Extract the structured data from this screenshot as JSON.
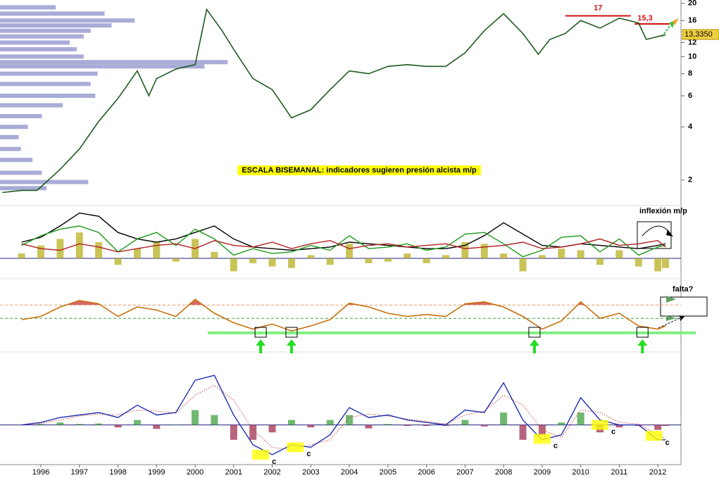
{
  "chart_data": [
    {
      "type": "line",
      "log_scale": true,
      "annotation": "ESCALA BISEMANAL: indicadores sugieren presión alcista m/p",
      "xlim": [
        1994.94,
        2012.6
      ],
      "ylim": [
        1.53,
        20.9
      ],
      "yticks": [
        2,
        4,
        6,
        8,
        10,
        12,
        16,
        20
      ],
      "x": [
        1995.0,
        1995.5,
        1995.9,
        1996.5,
        1997.0,
        1997.5,
        1998.0,
        1998.5,
        1998.8,
        1999.0,
        1999.5,
        2000.0,
        2000.3,
        2000.7,
        2001.0,
        2001.5,
        2002.0,
        2002.5,
        2003.0,
        2003.5,
        2004.0,
        2004.5,
        2005.0,
        2005.5,
        2006.0,
        2006.5,
        2007.0,
        2007.5,
        2008.0,
        2008.5,
        2008.9,
        2009.2,
        2009.6,
        2010.0,
        2010.5,
        2011.0,
        2011.5,
        2011.7,
        2012.2
      ],
      "series": [
        {
          "style": "line",
          "color": "#1f5a1f",
          "values": [
            1.7,
            1.75,
            1.75,
            2.3,
            3.0,
            4.3,
            5.8,
            8.3,
            6.0,
            7.5,
            8.5,
            9.0,
            18.5,
            14,
            11,
            7.5,
            6.5,
            4.5,
            5.0,
            6.5,
            8.3,
            8.0,
            8.8,
            9.0,
            8.8,
            8.8,
            10.5,
            14,
            17.5,
            13.5,
            10.3,
            12.5,
            13.5,
            16,
            14.5,
            16.5,
            15.5,
            12.5,
            13.3
          ]
        }
      ],
      "volume_profile": {
        "color": "#9a9ed0",
        "prices": [
          19,
          17.5,
          16,
          15,
          14,
          13,
          12,
          11,
          10,
          9.3,
          8.8,
          8,
          7,
          6,
          5.3,
          4.6,
          4,
          3.5,
          3,
          2.6,
          2.2,
          1.95,
          1.8
        ],
        "values": [
          24,
          45,
          58,
          48,
          39,
          36,
          30,
          33,
          36,
          98,
          88,
          42,
          39,
          41,
          27,
          18,
          12,
          8,
          9,
          14,
          18,
          38,
          20
        ]
      },
      "levels": [
        {
          "value": 17,
          "label": "17",
          "x": [
            2009.6,
            2011.3
          ],
          "color": "#d01010"
        },
        {
          "value": 15.3,
          "label": "15,3",
          "x": [
            2011.4,
            2012.3
          ],
          "color": "#d01010"
        }
      ],
      "last": {
        "value": 13.335,
        "label": "13,3350"
      }
    },
    {
      "type": "line",
      "annotation": "inflexión m/p",
      "zero_line": true,
      "xlim": [
        1994.94,
        2012.6
      ],
      "ylim": [
        -1,
        3
      ],
      "x": [
        1995.5,
        1996,
        1996.5,
        1997,
        1997.5,
        1998,
        1998.5,
        1999,
        1999.5,
        2000,
        2000.5,
        2001,
        2001.5,
        2002,
        2002.5,
        2003,
        2003.5,
        2004,
        2004.5,
        2005,
        2005.5,
        2006,
        2006.5,
        2007,
        2007.5,
        2008,
        2008.5,
        2009,
        2009.5,
        2010,
        2010.5,
        2011,
        2011.5,
        2012,
        2012.2
      ],
      "series": [
        {
          "style": "bar",
          "color": "#b8b020",
          "values": [
            0.3,
            0.8,
            1.2,
            1.6,
            1.0,
            -0.4,
            0.6,
            1.0,
            -0.2,
            1.2,
            0.4,
            -0.8,
            -0.3,
            -0.5,
            -0.6,
            0.2,
            -0.4,
            0.9,
            -0.3,
            -0.2,
            0.3,
            -0.3,
            0.2,
            1.0,
            0.9,
            0.3,
            -0.8,
            0.2,
            0.6,
            0.5,
            -0.4,
            0.5,
            -0.5,
            -0.8,
            -0.6
          ]
        },
        {
          "style": "line",
          "color": "#000000",
          "values": [
            1.0,
            1.3,
            2.0,
            2.8,
            2.6,
            1.6,
            1.2,
            1.0,
            1.2,
            1.6,
            2.0,
            1.2,
            0.7,
            0.6,
            0.5,
            0.6,
            0.7,
            1.0,
            0.9,
            0.8,
            0.7,
            0.6,
            0.6,
            0.8,
            1.4,
            2.2,
            1.5,
            0.8,
            0.7,
            0.9,
            0.8,
            0.7,
            0.6,
            0.8,
            0.9
          ]
        },
        {
          "style": "line",
          "color": "#1a9a1a",
          "values": [
            0.8,
            1.4,
            1.8,
            2.0,
            1.6,
            0.4,
            1.2,
            1.6,
            0.8,
            1.8,
            1.2,
            0.2,
            0.6,
            0.3,
            0.4,
            0.8,
            0.5,
            1.4,
            0.6,
            0.7,
            0.9,
            0.5,
            0.7,
            1.5,
            1.6,
            0.9,
            0.1,
            0.5,
            1.3,
            1.4,
            0.4,
            1.2,
            0.2,
            0.7,
            0.8
          ]
        },
        {
          "style": "line",
          "color": "#b02020",
          "values": [
            0.9,
            0.6,
            0.5,
            0.9,
            0.7,
            0.4,
            0.6,
            0.8,
            0.9,
            0.6,
            1.1,
            0.8,
            0.7,
            1.0,
            0.6,
            0.9,
            1.1,
            0.6,
            0.8,
            0.9,
            0.7,
            0.8,
            0.9,
            0.6,
            0.7,
            0.8,
            1.0,
            0.6,
            0.7,
            0.9,
            1.2,
            0.8,
            0.9,
            1.1,
            0.7
          ]
        }
      ]
    },
    {
      "type": "line",
      "annotation": "falta?",
      "xlim": [
        1994.94,
        2012.6
      ],
      "ylim": [
        0,
        100
      ],
      "x": [
        1995.5,
        1996,
        1996.5,
        1997,
        1997.5,
        1998,
        1998.5,
        1999,
        1999.5,
        2000,
        2000.5,
        2001,
        2001.5,
        2002,
        2002.5,
        2003,
        2003.5,
        2004,
        2004.5,
        2005,
        2005.5,
        2006,
        2006.5,
        2007,
        2007.5,
        2008,
        2008.5,
        2009,
        2009.5,
        2010,
        2010.5,
        2011,
        2011.5,
        2012,
        2012.2
      ],
      "series": [
        {
          "style": "line",
          "color": "#c8700a",
          "fill_above": 63,
          "fill_color": "#d86868",
          "values": [
            40,
            45,
            60,
            70,
            65,
            45,
            60,
            55,
            45,
            72,
            50,
            35,
            25,
            33,
            22,
            30,
            40,
            66,
            60,
            50,
            45,
            48,
            45,
            65,
            68,
            60,
            45,
            25,
            38,
            68,
            42,
            50,
            30,
            25,
            30
          ]
        }
      ],
      "levels": [
        {
          "value": 63,
          "color": "#f0a060",
          "dash": true
        },
        {
          "value": 42,
          "color": "#40a040",
          "dash": true
        },
        {
          "value": 19,
          "color": "#80f080",
          "dash": false
        }
      ],
      "signals": [
        2001.7,
        2002.5,
        2008.8,
        2011.6
      ]
    },
    {
      "type": "line",
      "zero_line": true,
      "xlim": [
        1994.94,
        2012.6
      ],
      "ylim": [
        -0.8,
        1.4
      ],
      "xticks": [
        1996,
        1997,
        1998,
        1999,
        2000,
        2001,
        2002,
        2003,
        2004,
        2005,
        2006,
        2007,
        2008,
        2009,
        2010,
        2011,
        2012
      ],
      "x": [
        1995.5,
        1996,
        1996.5,
        1997,
        1997.5,
        1998,
        1998.5,
        1999,
        1999.5,
        2000,
        2000.5,
        2001,
        2001.5,
        2002,
        2002.5,
        2003,
        2003.5,
        2004,
        2004.5,
        2005,
        2005.5,
        2006,
        2006.5,
        2007,
        2007.5,
        2008,
        2008.5,
        2009,
        2009.5,
        2010,
        2010.5,
        2011,
        2011.5,
        2012,
        2012.2
      ],
      "series": [
        {
          "style": "bar",
          "color": "#40a040",
          "neg_color": "#a03050",
          "values": [
            0,
            0.02,
            0.05,
            0.02,
            0.03,
            -0.05,
            0.1,
            -0.08,
            0.01,
            0.3,
            0.2,
            -0.3,
            -0.3,
            -0.15,
            0.1,
            -0.05,
            0.1,
            0.2,
            -0.07,
            0.02,
            -0.02,
            -0.02,
            -0.02,
            0.1,
            -0.03,
            0.25,
            -0.3,
            -0.2,
            0.05,
            0.25,
            -0.15,
            -0.05,
            -0.02,
            -0.1,
            -0.02
          ]
        },
        {
          "style": "dotted",
          "color": "#d04040",
          "values": [
            0,
            0.03,
            0.1,
            0.18,
            0.22,
            0.2,
            0.3,
            0.28,
            0.24,
            0.6,
            0.8,
            0.5,
            -0.1,
            -0.45,
            -0.5,
            -0.4,
            -0.3,
            0.15,
            0.22,
            0.18,
            0.12,
            0.07,
            0.02,
            0.2,
            0.28,
            0.6,
            0.4,
            -0.1,
            -0.25,
            0.3,
            0.25,
            0.05,
            0.02,
            -0.2,
            -0.28
          ]
        },
        {
          "style": "line",
          "color": "#2030b0",
          "values": [
            0,
            0.05,
            0.15,
            0.2,
            0.25,
            0.15,
            0.4,
            0.2,
            0.25,
            0.9,
            1.0,
            0.2,
            -0.4,
            -0.6,
            -0.4,
            -0.45,
            -0.2,
            0.35,
            0.15,
            0.2,
            0.1,
            0.05,
            0.0,
            0.3,
            0.25,
            0.85,
            0.1,
            -0.3,
            -0.2,
            0.55,
            0.1,
            0.0,
            0.0,
            -0.3,
            -0.3
          ]
        }
      ],
      "c_marks": [
        {
          "x": 2001.7,
          "y": -0.6,
          "label": "c"
        },
        {
          "x": 2002.6,
          "y": -0.45,
          "label": "c"
        },
        {
          "x": 2009.0,
          "y": -0.28,
          "label": "c"
        },
        {
          "x": 2010.5,
          "y": 0.0,
          "label": "c"
        },
        {
          "x": 2011.9,
          "y": -0.22,
          "label": "c"
        }
      ]
    }
  ]
}
